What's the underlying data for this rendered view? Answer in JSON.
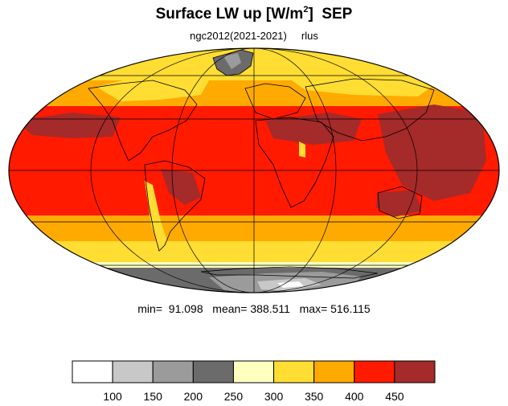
{
  "title": {
    "main": "Surface LW up [W/m",
    "sup": "2",
    "close": "]",
    "month": "SEP"
  },
  "subtitle": {
    "case": "ngc2012(2021-2021)",
    "var": "rlus"
  },
  "stats": {
    "min_label": "min=",
    "min": "91.098",
    "mean_label": "mean=",
    "mean": "388.511",
    "max_label": "max=",
    "max": "516.115"
  },
  "colorbar": {
    "colors": [
      "#ffffff",
      "#c8c8c8",
      "#9b9b9b",
      "#6b6b6b",
      "#ffffc0",
      "#ffdd33",
      "#ffaa00",
      "#ff1a00",
      "#a52a2a"
    ],
    "ticks": [
      "100",
      "150",
      "200",
      "250",
      "300",
      "350",
      "400",
      "450"
    ]
  }
}
